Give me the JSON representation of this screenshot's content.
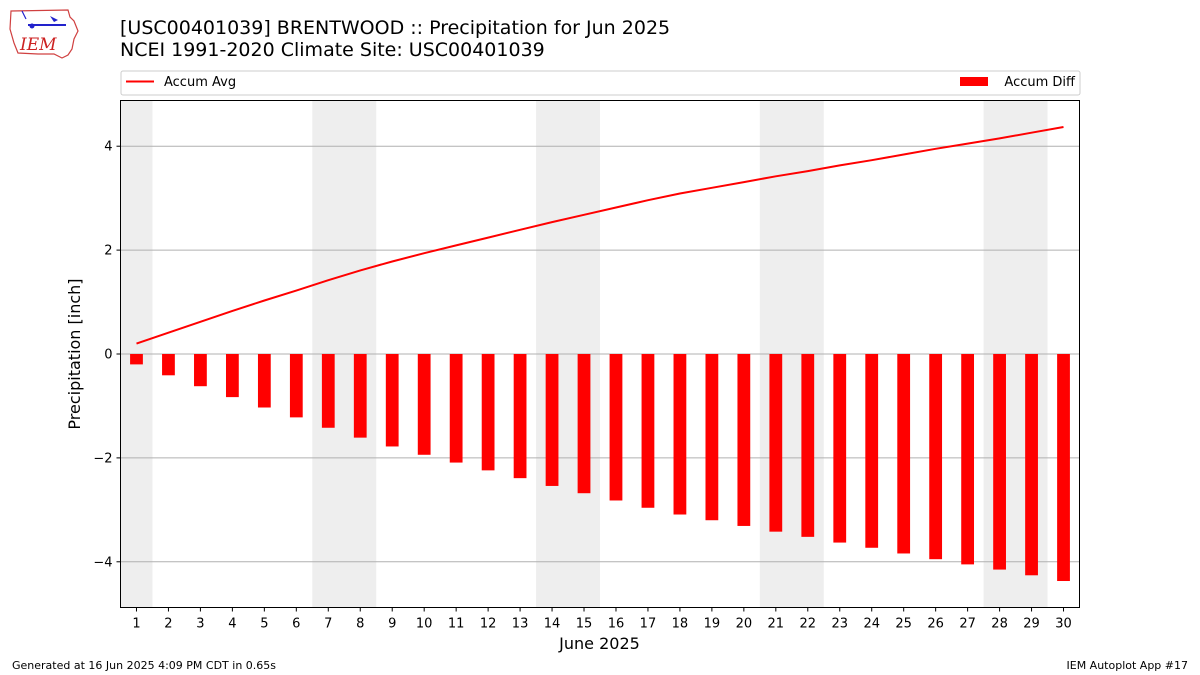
{
  "header": {
    "title_line1": "[USC00401039] BRENTWOOD :: Precipitation for Jun 2025",
    "title_line2": "NCEI 1991-2020 Climate Site: USC00401039",
    "logo_text": "IEM"
  },
  "footer": {
    "generated": "Generated at 16 Jun 2025 4:09 PM CDT in 0.65s",
    "app": "IEM Autoplot App #17"
  },
  "colors": {
    "series": "#ff0000",
    "weekend_shade": "#eeeeee",
    "grid": "#b0b0b0",
    "logo": "#cc2222"
  },
  "chart_data": {
    "type": "bar",
    "xlabel": "June 2025",
    "ylabel": "Precipitation [inch]",
    "ylim": [
      -4.88,
      4.88
    ],
    "yticks": [
      -4,
      -2,
      0,
      2,
      4
    ],
    "ytick_labels": [
      "−4",
      "−2",
      "0",
      "2",
      "4"
    ],
    "grid": "horizontal",
    "legend_placement": "top, above plot",
    "categories": [
      1,
      2,
      3,
      4,
      5,
      6,
      7,
      8,
      9,
      10,
      11,
      12,
      13,
      14,
      15,
      16,
      17,
      18,
      19,
      20,
      21,
      22,
      23,
      24,
      25,
      26,
      27,
      28,
      29,
      30
    ],
    "shaded_days": [
      1,
      7,
      8,
      14,
      15,
      21,
      22,
      28,
      29
    ],
    "series": [
      {
        "name": "Accum Avg",
        "type": "line",
        "values": [
          0.2,
          0.41,
          0.62,
          0.83,
          1.03,
          1.22,
          1.42,
          1.61,
          1.78,
          1.94,
          2.09,
          2.24,
          2.39,
          2.54,
          2.68,
          2.82,
          2.96,
          3.09,
          3.2,
          3.31,
          3.42,
          3.52,
          3.63,
          3.73,
          3.84,
          3.95,
          4.05,
          4.15,
          4.26,
          4.37
        ]
      },
      {
        "name": "Accum Diff",
        "type": "bar",
        "values": [
          -0.2,
          -0.41,
          -0.62,
          -0.83,
          -1.03,
          -1.22,
          -1.42,
          -1.61,
          -1.78,
          -1.94,
          -2.09,
          -2.24,
          -2.39,
          -2.54,
          -2.68,
          -2.82,
          -2.96,
          -3.09,
          -3.2,
          -3.31,
          -3.42,
          -3.52,
          -3.63,
          -3.73,
          -3.84,
          -3.95,
          -4.05,
          -4.15,
          -4.26,
          -4.37
        ]
      }
    ]
  }
}
